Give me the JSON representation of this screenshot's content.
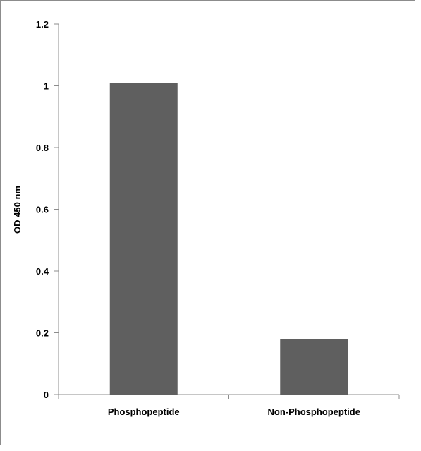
{
  "chart_data": {
    "type": "bar",
    "title": "",
    "xlabel": "",
    "ylabel": "OD 450 nm",
    "categories": [
      "Phosphopeptide",
      "Non-Phosphopeptide"
    ],
    "values": [
      1.01,
      0.18
    ],
    "ylim": [
      0,
      1.2
    ],
    "yticks": [
      "0",
      "0.2",
      "0.4",
      "0.6",
      "0.8",
      "1",
      "1.2"
    ],
    "grid": false,
    "legend": "none",
    "bar_color": "#5f5f5f",
    "axis_color": "#8c8c8c"
  }
}
